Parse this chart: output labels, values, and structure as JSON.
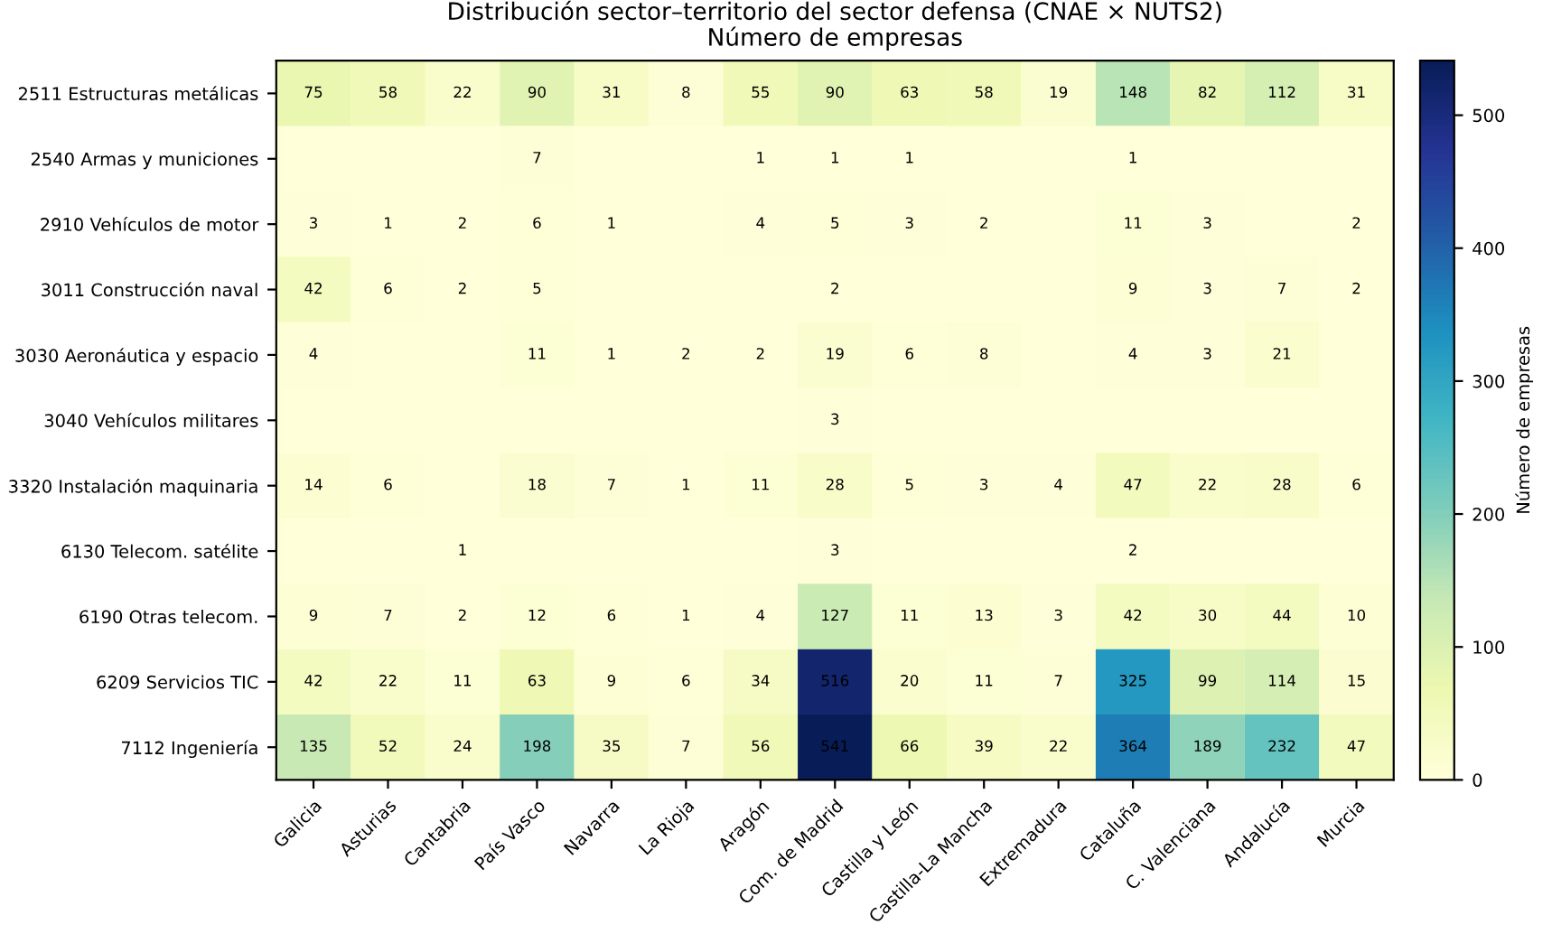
{
  "chart_data": {
    "type": "heatmap",
    "title": "Distribución sector–territorio del sector defensa (CNAE × NUTS2)",
    "subtitle": "Número de empresas",
    "clabel": "Número de empresas",
    "categories": [
      "Galicia",
      "Asturias",
      "Cantabria",
      "País Vasco",
      "Navarra",
      "La Rioja",
      "Aragón",
      "Com. de Madrid",
      "Castilla y León",
      "Castilla-La Mancha",
      "Extremadura",
      "Cataluña",
      "C. Valenciana",
      "Andalucía",
      "Murcia"
    ],
    "y_categories": [
      "2511 Estructuras metálicas",
      "2540 Armas y municiones",
      "2910 Vehículos de motor",
      "3011 Construcción naval",
      "3030 Aeronáutica y espacio",
      "3040 Vehículos militares",
      "3320 Instalación maquinaria",
      "6130 Telecom. satélite",
      "6190 Otras telecom.",
      "6209 Servicios TIC",
      "7112 Ingeniería"
    ],
    "cells": [
      [
        75,
        58,
        22,
        90,
        31,
        8,
        55,
        90,
        63,
        58,
        19,
        148,
        82,
        112,
        31
      ],
      [
        null,
        null,
        null,
        7,
        null,
        null,
        1,
        1,
        1,
        null,
        null,
        1,
        null,
        null,
        null
      ],
      [
        3,
        1,
        2,
        6,
        1,
        null,
        4,
        5,
        3,
        2,
        null,
        11,
        3,
        null,
        2
      ],
      [
        42,
        6,
        2,
        5,
        null,
        null,
        null,
        2,
        null,
        null,
        null,
        9,
        3,
        7,
        2
      ],
      [
        4,
        null,
        null,
        11,
        1,
        2,
        2,
        19,
        6,
        8,
        null,
        4,
        3,
        21,
        null
      ],
      [
        null,
        null,
        null,
        null,
        null,
        null,
        null,
        3,
        null,
        null,
        null,
        null,
        null,
        null,
        null
      ],
      [
        14,
        6,
        null,
        18,
        7,
        1,
        11,
        28,
        5,
        3,
        4,
        47,
        22,
        28,
        6
      ],
      [
        null,
        null,
        1,
        null,
        null,
        null,
        null,
        3,
        null,
        null,
        null,
        2,
        null,
        null,
        null
      ],
      [
        9,
        7,
        2,
        12,
        6,
        1,
        4,
        127,
        11,
        13,
        3,
        42,
        30,
        44,
        10
      ],
      [
        42,
        22,
        11,
        63,
        9,
        6,
        34,
        516,
        20,
        11,
        7,
        325,
        99,
        114,
        15
      ],
      [
        135,
        52,
        24,
        198,
        35,
        7,
        56,
        541,
        66,
        39,
        22,
        364,
        189,
        232,
        47
      ]
    ],
    "data_labels": true,
    "clim": [
      0,
      541
    ],
    "cticks": [
      0,
      100,
      200,
      300,
      400,
      500
    ]
  }
}
